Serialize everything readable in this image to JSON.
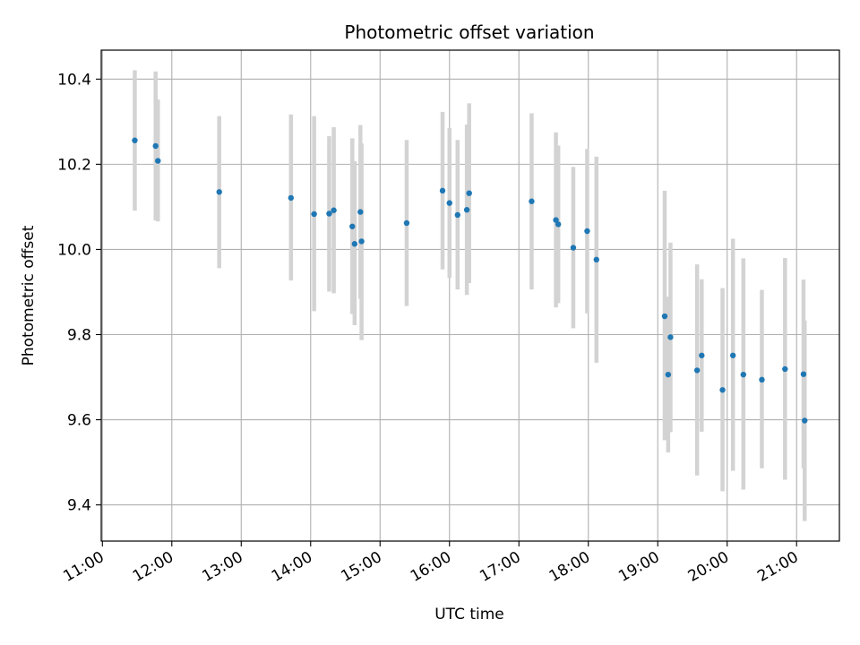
{
  "chart_data": {
    "type": "scatter",
    "title": "Photometric offset variation",
    "xlabel": "UTC time",
    "ylabel": "Photometric offset",
    "xlim": [
      "10:59",
      "21:37"
    ],
    "ylim": [
      9.315,
      10.468
    ],
    "x_ticks": [
      "11:00",
      "12:00",
      "13:00",
      "14:00",
      "15:00",
      "16:00",
      "17:00",
      "18:00",
      "19:00",
      "20:00",
      "21:00"
    ],
    "y_ticks": [
      "9.4",
      "9.6",
      "9.8",
      "10.0",
      "10.2",
      "10.4"
    ],
    "y_tick_values": [
      9.4,
      9.6,
      9.8,
      10.0,
      10.2,
      10.4
    ],
    "grid": true,
    "colors": {
      "points": "#1f77b4",
      "error_bars": "#d3d3d3",
      "grid": "#b0b0b0"
    },
    "points": [
      {
        "x": "11:28",
        "y": 10.256,
        "lo": 10.091,
        "hi": 10.421
      },
      {
        "x": "11:46",
        "y": 10.243,
        "lo": 10.068,
        "hi": 10.418
      },
      {
        "x": "11:48",
        "y": 10.208,
        "lo": 10.066,
        "hi": 10.352
      },
      {
        "x": "12:41",
        "y": 10.135,
        "lo": 9.956,
        "hi": 10.313
      },
      {
        "x": "13:43",
        "y": 10.121,
        "lo": 9.927,
        "hi": 10.317
      },
      {
        "x": "14:03",
        "y": 10.083,
        "lo": 9.855,
        "hi": 10.313
      },
      {
        "x": "14:16",
        "y": 10.084,
        "lo": 9.901,
        "hi": 10.266
      },
      {
        "x": "14:20",
        "y": 10.092,
        "lo": 9.897,
        "hi": 10.287
      },
      {
        "x": "14:36",
        "y": 10.054,
        "lo": 9.848,
        "hi": 10.261
      },
      {
        "x": "14:38",
        "y": 10.013,
        "lo": 9.822,
        "hi": 10.207
      },
      {
        "x": "14:43",
        "y": 10.088,
        "lo": 9.884,
        "hi": 10.292
      },
      {
        "x": "14:44",
        "y": 10.019,
        "lo": 9.787,
        "hi": 10.249
      },
      {
        "x": "15:23",
        "y": 10.062,
        "lo": 9.867,
        "hi": 10.257
      },
      {
        "x": "15:54",
        "y": 10.138,
        "lo": 9.953,
        "hi": 10.323
      },
      {
        "x": "16:00",
        "y": 10.109,
        "lo": 9.933,
        "hi": 10.285
      },
      {
        "x": "16:07",
        "y": 10.081,
        "lo": 9.906,
        "hi": 10.257
      },
      {
        "x": "16:15",
        "y": 10.093,
        "lo": 9.893,
        "hi": 10.293
      },
      {
        "x": "16:17",
        "y": 10.132,
        "lo": 9.921,
        "hi": 10.343
      },
      {
        "x": "17:11",
        "y": 10.113,
        "lo": 9.906,
        "hi": 10.32
      },
      {
        "x": "17:32",
        "y": 10.069,
        "lo": 9.864,
        "hi": 10.275
      },
      {
        "x": "17:34",
        "y": 10.059,
        "lo": 9.874,
        "hi": 10.244
      },
      {
        "x": "17:47",
        "y": 10.004,
        "lo": 9.815,
        "hi": 10.194
      },
      {
        "x": "17:59",
        "y": 10.043,
        "lo": 9.85,
        "hi": 10.236
      },
      {
        "x": "18:07",
        "y": 9.976,
        "lo": 9.734,
        "hi": 10.218
      },
      {
        "x": "19:06",
        "y": 9.843,
        "lo": 9.552,
        "hi": 10.138
      },
      {
        "x": "19:09",
        "y": 9.706,
        "lo": 9.523,
        "hi": 9.889
      },
      {
        "x": "19:11",
        "y": 9.794,
        "lo": 9.571,
        "hi": 10.016
      },
      {
        "x": "19:34",
        "y": 9.716,
        "lo": 9.469,
        "hi": 9.965
      },
      {
        "x": "19:38",
        "y": 9.751,
        "lo": 9.572,
        "hi": 9.93
      },
      {
        "x": "19:56",
        "y": 9.67,
        "lo": 9.432,
        "hi": 9.909
      },
      {
        "x": "20:05",
        "y": 9.751,
        "lo": 9.48,
        "hi": 10.025
      },
      {
        "x": "20:14",
        "y": 9.706,
        "lo": 9.436,
        "hi": 9.979
      },
      {
        "x": "20:30",
        "y": 9.694,
        "lo": 9.486,
        "hi": 9.905
      },
      {
        "x": "20:50",
        "y": 9.719,
        "lo": 9.459,
        "hi": 9.98
      },
      {
        "x": "21:06",
        "y": 9.707,
        "lo": 9.486,
        "hi": 9.929
      },
      {
        "x": "21:07",
        "y": 9.598,
        "lo": 9.362,
        "hi": 9.833
      }
    ]
  }
}
